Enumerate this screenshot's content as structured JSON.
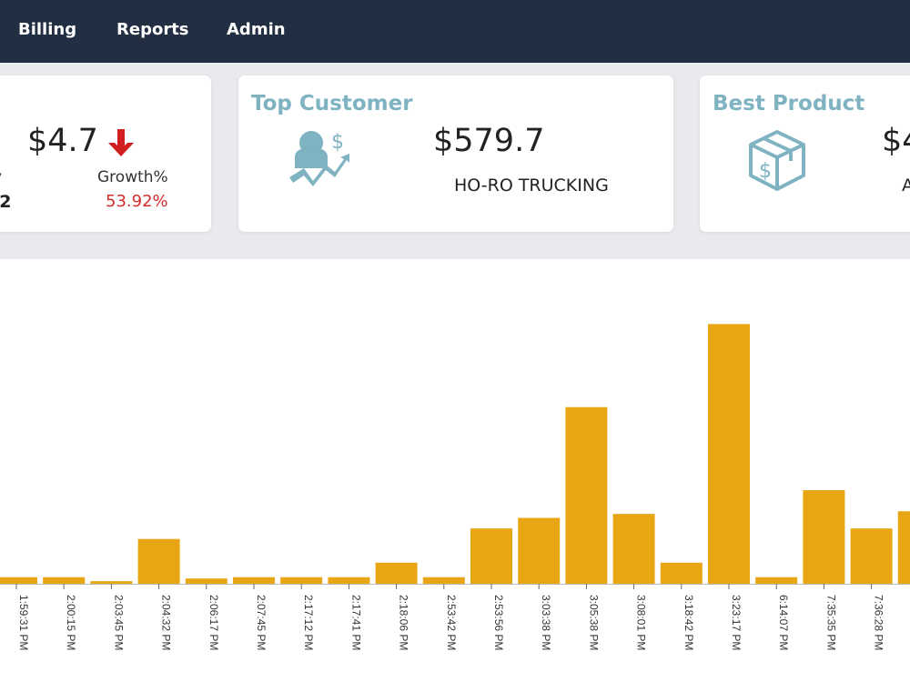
{
  "nav": {
    "items": [
      {
        "label": "Billing"
      },
      {
        "label": "Reports"
      },
      {
        "label": "Admin"
      }
    ]
  },
  "cards": {
    "sales": {
      "value": "$4.7",
      "label_left_partial": "y",
      "value_left_partial": ".2",
      "growth_label": "Growth%",
      "growth_value": "53.92%",
      "trend_icon": "arrow-down-icon",
      "trend_color": "#d11f1f"
    },
    "top_customer": {
      "title": "Top Customer",
      "icon": "customer-revenue-icon",
      "value": "$579.7",
      "name": "HO-RO TRUCKING"
    },
    "best_product": {
      "title": "Best Product",
      "icon": "product-box-icon",
      "value_partial": "$4",
      "name_partial": "A"
    }
  },
  "colors": {
    "nav_bg": "#222e42",
    "accent": "#7fb3c1",
    "bar": "#e8a615",
    "negative": "#d22c2c"
  },
  "chart_data": {
    "type": "bar",
    "categories": [
      "1:59:31 PM",
      "2:00:15 PM",
      "2:03:45 PM",
      "2:04:32 PM",
      "2:06:17 PM",
      "2:07:45 PM",
      "2:17:12 PM",
      "2:17:41 PM",
      "2:18:06 PM",
      "2:53:42 PM",
      "2:53:56 PM",
      "3:03:38 PM",
      "3:05:38 PM",
      "3:08:01 PM",
      "3:18:42 PM",
      "3:23:17 PM",
      "6:14:07 PM",
      "7:35:35 PM",
      "7:36:28 PM",
      ""
    ],
    "values": [
      2.5,
      2.5,
      1,
      17,
      2,
      2.5,
      2.5,
      2.5,
      8,
      2.5,
      21,
      25,
      67,
      26.5,
      8,
      98.5,
      2.5,
      35.5,
      21,
      27.5
    ],
    "ylim": [
      0,
      100
    ],
    "grid": false,
    "legend": "none"
  }
}
